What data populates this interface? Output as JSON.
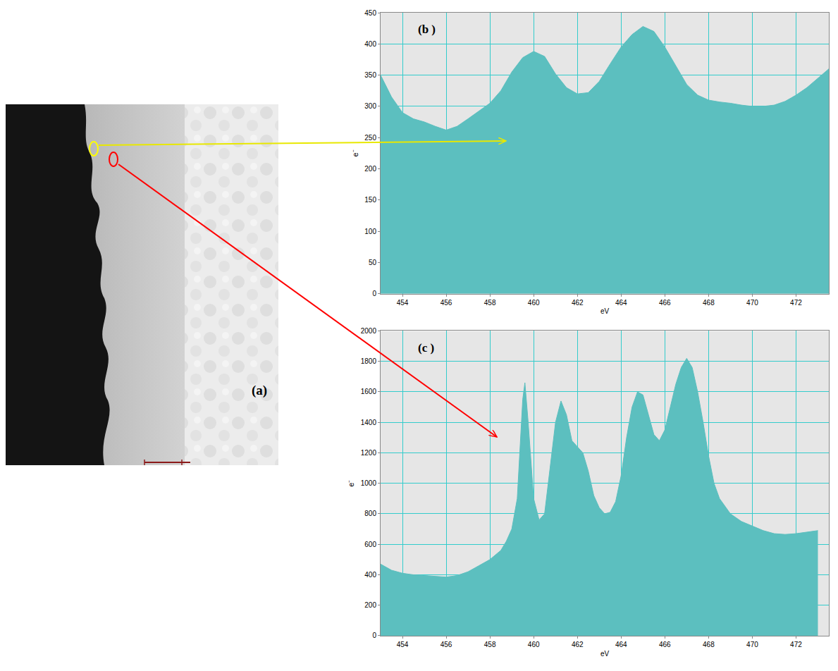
{
  "image": {
    "label": "(a)"
  },
  "chart_data": [
    {
      "type": "area",
      "panel_label": "(b )",
      "x_label": "eV",
      "y_label": "e⁻",
      "color": "#5cbfbf",
      "grid": true,
      "xlim": [
        453,
        473.5
      ],
      "ylim": [
        0,
        450
      ],
      "xticks": [
        454,
        456,
        458,
        460,
        462,
        464,
        466,
        468,
        470,
        472
      ],
      "yticks": [
        0,
        50,
        100,
        150,
        200,
        250,
        300,
        350,
        400,
        450
      ],
      "x": [
        453,
        453.5,
        454,
        454.5,
        455,
        455.5,
        456,
        456.5,
        457,
        457.5,
        458,
        458.5,
        459,
        459.5,
        460,
        460.5,
        461,
        461.5,
        462,
        462.5,
        463,
        463.5,
        464,
        464.5,
        465,
        465.5,
        466,
        466.5,
        467,
        467.5,
        468,
        468.5,
        469,
        469.5,
        470,
        470.5,
        471,
        471.5,
        472,
        472.5,
        473,
        473.5
      ],
      "values": [
        350,
        315,
        290,
        280,
        275,
        268,
        262,
        268,
        280,
        292,
        305,
        325,
        355,
        378,
        388,
        380,
        352,
        330,
        320,
        322,
        340,
        368,
        395,
        415,
        428,
        420,
        395,
        365,
        335,
        318,
        310,
        307,
        305,
        302,
        300,
        300,
        302,
        308,
        318,
        330,
        345,
        360
      ]
    },
    {
      "type": "area",
      "panel_label": "(c )",
      "x_label": "eV",
      "y_label": "e⁻",
      "color": "#5cbfbf",
      "grid": true,
      "xlim": [
        453,
        473.5
      ],
      "ylim": [
        0,
        2000
      ],
      "xticks": [
        454,
        456,
        458,
        460,
        462,
        464,
        466,
        468,
        470,
        472
      ],
      "yticks": [
        0,
        200,
        400,
        600,
        800,
        1000,
        1200,
        1400,
        1600,
        1800,
        2000
      ],
      "x": [
        453,
        453.5,
        454,
        454.5,
        455,
        455.5,
        456,
        456.5,
        457,
        457.5,
        458,
        458.5,
        458.75,
        459,
        459.25,
        459.5,
        459.6,
        459.75,
        460,
        460.25,
        460.5,
        460.75,
        461,
        461.25,
        461.5,
        461.75,
        462,
        462.25,
        462.5,
        462.75,
        463,
        463.25,
        463.5,
        463.75,
        464,
        464.25,
        464.5,
        464.75,
        465,
        465.25,
        465.5,
        465.75,
        466,
        466.25,
        466.5,
        466.75,
        467,
        467.25,
        467.5,
        467.75,
        468,
        468.25,
        468.5,
        469,
        469.5,
        470,
        470.5,
        471,
        471.5,
        472,
        472.5,
        473
      ],
      "values": [
        470,
        430,
        410,
        400,
        395,
        390,
        385,
        395,
        420,
        460,
        500,
        560,
        620,
        700,
        900,
        1550,
        1660,
        1400,
        900,
        760,
        800,
        1100,
        1400,
        1540,
        1450,
        1280,
        1240,
        1200,
        1080,
        920,
        840,
        800,
        810,
        880,
        1050,
        1300,
        1500,
        1600,
        1580,
        1450,
        1320,
        1280,
        1350,
        1500,
        1650,
        1760,
        1820,
        1760,
        1600,
        1400,
        1180,
        1000,
        900,
        800,
        750,
        720,
        690,
        670,
        665,
        670,
        680,
        690
      ]
    }
  ]
}
